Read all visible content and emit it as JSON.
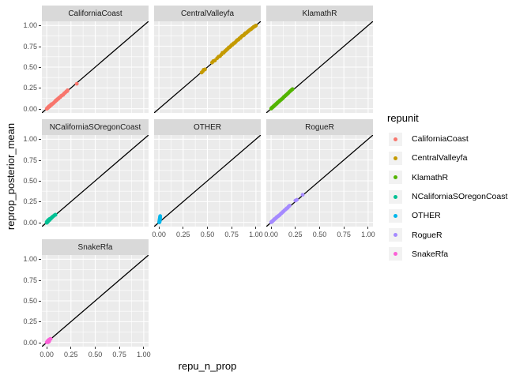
{
  "figure": {
    "x_axis_title": "repu_n_prop",
    "y_axis_title": "reprop_posterior_mean"
  },
  "legend": {
    "title": "repunit",
    "entries": [
      {
        "label": "CaliforniaCoast",
        "color": "#F8766D"
      },
      {
        "label": "CentralValleyfa",
        "color": "#C49A00"
      },
      {
        "label": "KlamathR",
        "color": "#53B400"
      },
      {
        "label": "NCaliforniaSOregonCoast",
        "color": "#00C094"
      },
      {
        "label": "OTHER",
        "color": "#00B6EB"
      },
      {
        "label": "RogueR",
        "color": "#A58AFF"
      },
      {
        "label": "SnakeRfa",
        "color": "#FB61D7"
      }
    ]
  },
  "chart_data": {
    "type": "scatter",
    "xlabel": "repu_n_prop",
    "ylabel": "reprop_posterior_mean",
    "facet_variable": "repunit",
    "xlim": [
      -0.05,
      1.05
    ],
    "ylim": [
      -0.05,
      1.05
    ],
    "x_tick_values": [
      0,
      0.25,
      0.5,
      0.75,
      1
    ],
    "x_tick_labels": [
      "0.00",
      "0.25",
      "0.50",
      "0.75",
      "1.00"
    ],
    "y_tick_values": [
      1,
      0.75,
      0.5,
      0.25,
      0
    ],
    "y_tick_labels": [
      "1.00",
      "0.75",
      "0.50",
      "0.25",
      "0.00"
    ],
    "minor_grid_values": [
      0.125,
      0.375,
      0.625,
      0.875
    ],
    "grid": true,
    "legend_position": "right",
    "reference_line": {
      "type": "abline",
      "intercept": 0,
      "slope": 1,
      "color": "#000000"
    },
    "panel_background": "#EBEBEB",
    "strip_background": "#D9D9D9",
    "grid_color": "#FFFFFF",
    "facets": [
      {
        "name": "CaliforniaCoast",
        "color": "#F8766D",
        "points": [
          [
            0,
            0
          ],
          [
            0.005,
            0.004
          ],
          [
            0.008,
            0.01
          ],
          [
            0.012,
            0.01
          ],
          [
            0.015,
            0.018
          ],
          [
            0.02,
            0.02
          ],
          [
            0.022,
            0.028
          ],
          [
            0.028,
            0.025
          ],
          [
            0.03,
            0.032
          ],
          [
            0.035,
            0.038
          ],
          [
            0.04,
            0.04
          ],
          [
            0.045,
            0.05
          ],
          [
            0.05,
            0.048
          ],
          [
            0.055,
            0.057
          ],
          [
            0.06,
            0.06
          ],
          [
            0.07,
            0.068
          ],
          [
            0.08,
            0.08
          ],
          [
            0.09,
            0.09
          ],
          [
            0.095,
            0.102
          ],
          [
            0.105,
            0.105
          ],
          [
            0.11,
            0.115
          ],
          [
            0.12,
            0.12
          ],
          [
            0.125,
            0.13
          ],
          [
            0.135,
            0.138
          ],
          [
            0.14,
            0.14
          ],
          [
            0.15,
            0.155
          ],
          [
            0.16,
            0.162
          ],
          [
            0.17,
            0.168
          ],
          [
            0.18,
            0.185
          ],
          [
            0.19,
            0.192
          ],
          [
            0.2,
            0.205
          ],
          [
            0.21,
            0.212
          ],
          [
            0.215,
            0.222
          ],
          [
            0.31,
            0.3
          ]
        ]
      },
      {
        "name": "CentralValleyfa",
        "color": "#C49A00",
        "points": [
          [
            0.44,
            0.435
          ],
          [
            0.452,
            0.45
          ],
          [
            0.462,
            0.468
          ],
          [
            0.475,
            0.472
          ],
          [
            0.548,
            0.555
          ],
          [
            0.56,
            0.572
          ],
          [
            0.578,
            0.58
          ],
          [
            0.6,
            0.607
          ],
          [
            0.615,
            0.625
          ],
          [
            0.63,
            0.632
          ],
          [
            0.645,
            0.652
          ],
          [
            0.656,
            0.672
          ],
          [
            0.668,
            0.672
          ],
          [
            0.68,
            0.69
          ],
          [
            0.69,
            0.7
          ],
          [
            0.7,
            0.712
          ],
          [
            0.71,
            0.72
          ],
          [
            0.72,
            0.736
          ],
          [
            0.73,
            0.74
          ],
          [
            0.74,
            0.752
          ],
          [
            0.75,
            0.766
          ],
          [
            0.76,
            0.77
          ],
          [
            0.77,
            0.786
          ],
          [
            0.78,
            0.79
          ],
          [
            0.79,
            0.8
          ],
          [
            0.8,
            0.816
          ],
          [
            0.81,
            0.826
          ],
          [
            0.82,
            0.83
          ],
          [
            0.83,
            0.846
          ],
          [
            0.84,
            0.85
          ],
          [
            0.85,
            0.866
          ],
          [
            0.86,
            0.876
          ],
          [
            0.87,
            0.88
          ],
          [
            0.88,
            0.89
          ],
          [
            0.886,
            0.9
          ],
          [
            0.89,
            0.906
          ],
          [
            0.9,
            0.91
          ],
          [
            0.91,
            0.92
          ],
          [
            0.92,
            0.93
          ],
          [
            0.93,
            0.94
          ],
          [
            0.94,
            0.95
          ],
          [
            0.95,
            0.956
          ],
          [
            0.96,
            0.966
          ],
          [
            0.97,
            0.976
          ],
          [
            0.98,
            0.985
          ],
          [
            0.99,
            0.99
          ],
          [
            1,
            1
          ]
        ]
      },
      {
        "name": "KlamathR",
        "color": "#53B400",
        "points": [
          [
            0,
            0.002
          ],
          [
            0.005,
            0.01
          ],
          [
            0.01,
            0.012
          ],
          [
            0.015,
            0.02
          ],
          [
            0.02,
            0.022
          ],
          [
            0.025,
            0.03
          ],
          [
            0.03,
            0.032
          ],
          [
            0.035,
            0.04
          ],
          [
            0.04,
            0.045
          ],
          [
            0.045,
            0.05
          ],
          [
            0.05,
            0.055
          ],
          [
            0.055,
            0.06
          ],
          [
            0.06,
            0.065
          ],
          [
            0.065,
            0.072
          ],
          [
            0.07,
            0.078
          ],
          [
            0.08,
            0.085
          ],
          [
            0.085,
            0.092
          ],
          [
            0.09,
            0.1
          ],
          [
            0.1,
            0.106
          ],
          [
            0.11,
            0.116
          ],
          [
            0.12,
            0.126
          ],
          [
            0.13,
            0.14
          ],
          [
            0.14,
            0.15
          ],
          [
            0.15,
            0.16
          ],
          [
            0.16,
            0.17
          ],
          [
            0.17,
            0.182
          ],
          [
            0.18,
            0.192
          ],
          [
            0.19,
            0.205
          ],
          [
            0.2,
            0.215
          ],
          [
            0.21,
            0.226
          ],
          [
            0.22,
            0.235
          ]
        ]
      },
      {
        "name": "NCaliforniaSOregonCoast",
        "color": "#00C094",
        "points": [
          [
            0,
            -0.004
          ],
          [
            0,
            0.006
          ],
          [
            0.004,
            0
          ],
          [
            0.005,
            0.012
          ],
          [
            0.01,
            0.008
          ],
          [
            0.01,
            0.02
          ],
          [
            0.014,
            0.016
          ],
          [
            0.015,
            0.028
          ],
          [
            0.02,
            0.02
          ],
          [
            0.02,
            0.032
          ],
          [
            0.025,
            0.028
          ],
          [
            0.03,
            0.031
          ],
          [
            0.03,
            0.042
          ],
          [
            0.035,
            0.038
          ],
          [
            0.04,
            0.046
          ],
          [
            0.045,
            0.05
          ],
          [
            0.05,
            0.056
          ],
          [
            0.055,
            0.062
          ],
          [
            0.06,
            0.068
          ],
          [
            0.07,
            0.076
          ],
          [
            0.08,
            0.086
          ],
          [
            0.09,
            0.093
          ]
        ]
      },
      {
        "name": "OTHER",
        "color": "#00B6EB",
        "points": [
          [
            0.003,
            0
          ],
          [
            0.004,
            0.008
          ],
          [
            0.005,
            0.016
          ],
          [
            0.006,
            0.023
          ],
          [
            0.007,
            0.031
          ],
          [
            0.008,
            0.038
          ],
          [
            0.009,
            0.046
          ],
          [
            0.01,
            0.053
          ],
          [
            0.011,
            0.061
          ],
          [
            0.012,
            0.068
          ],
          [
            0.013,
            0.076
          ],
          [
            0.006,
            0.005
          ],
          [
            0.008,
            0.013
          ],
          [
            0.01,
            0.027
          ],
          [
            0.012,
            0.042
          ]
        ]
      },
      {
        "name": "RogueR",
        "color": "#A58AFF",
        "points": [
          [
            0,
            0.002
          ],
          [
            0.005,
            0.009
          ],
          [
            0.01,
            0.01
          ],
          [
            0.015,
            0.019
          ],
          [
            0.02,
            0.021
          ],
          [
            0.025,
            0.029
          ],
          [
            0.03,
            0.033
          ],
          [
            0.035,
            0.041
          ],
          [
            0.04,
            0.043
          ],
          [
            0.05,
            0.053
          ],
          [
            0.055,
            0.061
          ],
          [
            0.06,
            0.066
          ],
          [
            0.07,
            0.073
          ],
          [
            0.08,
            0.083
          ],
          [
            0.09,
            0.091
          ],
          [
            0.1,
            0.106
          ],
          [
            0.11,
            0.113
          ],
          [
            0.12,
            0.126
          ],
          [
            0.13,
            0.136
          ],
          [
            0.14,
            0.149
          ],
          [
            0.15,
            0.156
          ],
          [
            0.16,
            0.169
          ],
          [
            0.17,
            0.176
          ],
          [
            0.18,
            0.191
          ],
          [
            0.19,
            0.201
          ],
          [
            0.25,
            0.262
          ],
          [
            0.265,
            0.272
          ],
          [
            0.325,
            0.332
          ]
        ]
      },
      {
        "name": "SnakeRfa",
        "color": "#FB61D7",
        "points": [
          [
            0,
            0.002
          ],
          [
            0.005,
            0.007
          ],
          [
            0.008,
            0.013
          ],
          [
            0.01,
            0.01
          ],
          [
            0.012,
            0.021
          ],
          [
            0.015,
            0.017
          ],
          [
            0.018,
            0.026
          ],
          [
            0.02,
            0.023
          ],
          [
            0.022,
            0.031
          ],
          [
            0.025,
            0.029
          ],
          [
            0.03,
            0.036
          ],
          [
            0.035,
            0.041
          ],
          [
            0.04,
            0.043
          ],
          [
            0.015,
            0.004
          ],
          [
            0.025,
            0.013
          ]
        ]
      }
    ]
  }
}
